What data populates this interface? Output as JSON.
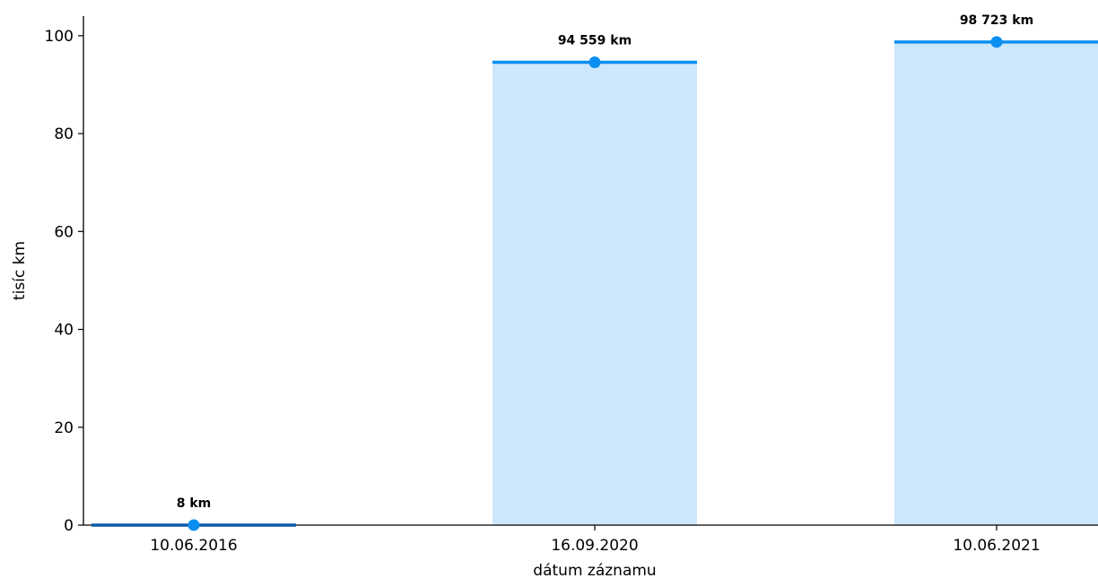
{
  "chart_data": {
    "type": "bar",
    "title": "",
    "xlabel": "dátum záznamu",
    "ylabel": "tisíc km",
    "categories": [
      "10.06.2016",
      "16.09.2020",
      "10.06.2021"
    ],
    "values": [
      0.008,
      94.559,
      98.723
    ],
    "data_labels": [
      "8 km",
      "94 559 km",
      "98 723 km"
    ],
    "ylim": [
      0,
      100
    ],
    "yticks": [
      0,
      20,
      40,
      60,
      80,
      100
    ],
    "grid": false,
    "colors": {
      "bar_fill": "#cde7fc",
      "bar_top_line": "#0b8ff0",
      "first_bar_line": "#0a5aa6",
      "marker": "#0b8ff0",
      "axis": "#000000"
    }
  }
}
